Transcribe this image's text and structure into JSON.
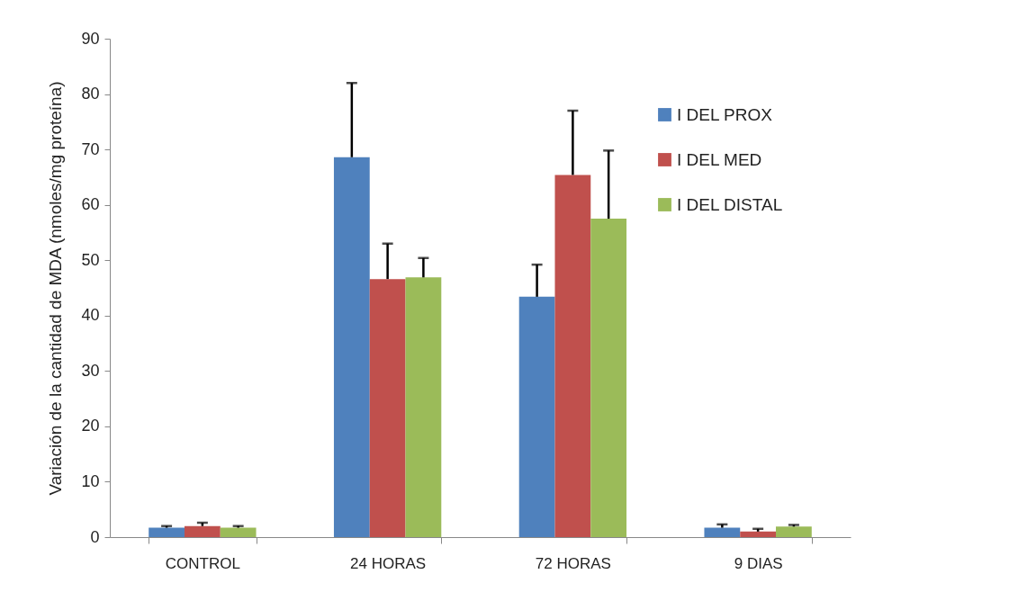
{
  "chart_data": {
    "type": "bar",
    "ylabel": "Variación de la cantidad de MDA (nmoles/mg proteína)",
    "categories": [
      "CONTROL",
      "24 HORAS",
      "72 HORAS",
      "9 DIAS"
    ],
    "series": [
      {
        "name": "I DEL PROX",
        "color": "#4f81bd",
        "values": [
          1.7,
          68.6,
          43.4,
          1.7
        ],
        "errors": [
          [
            1.7,
            2.0
          ],
          [
            68.6,
            82.0
          ],
          [
            43.4,
            49.2
          ],
          [
            1.7,
            2.3
          ]
        ]
      },
      {
        "name": "I DEL MED",
        "color": "#c0504d",
        "values": [
          2.0,
          46.6,
          65.4,
          1.0
        ],
        "errors": [
          [
            2.0,
            2.6
          ],
          [
            46.6,
            53.0
          ],
          [
            65.4,
            77.0
          ],
          [
            1.0,
            1.5
          ]
        ]
      },
      {
        "name": "I DEL DISTAL",
        "color": "#9bbb59",
        "values": [
          1.7,
          46.9,
          57.5,
          1.9
        ],
        "errors": [
          [
            1.7,
            2.0
          ],
          [
            46.9,
            50.4
          ],
          [
            57.5,
            69.8
          ],
          [
            1.9,
            2.2
          ]
        ]
      }
    ],
    "ylim": [
      0,
      90
    ],
    "yticks": [
      0,
      10,
      20,
      30,
      40,
      50,
      60,
      70,
      80,
      90
    ],
    "grid": false,
    "legend": "top right"
  }
}
